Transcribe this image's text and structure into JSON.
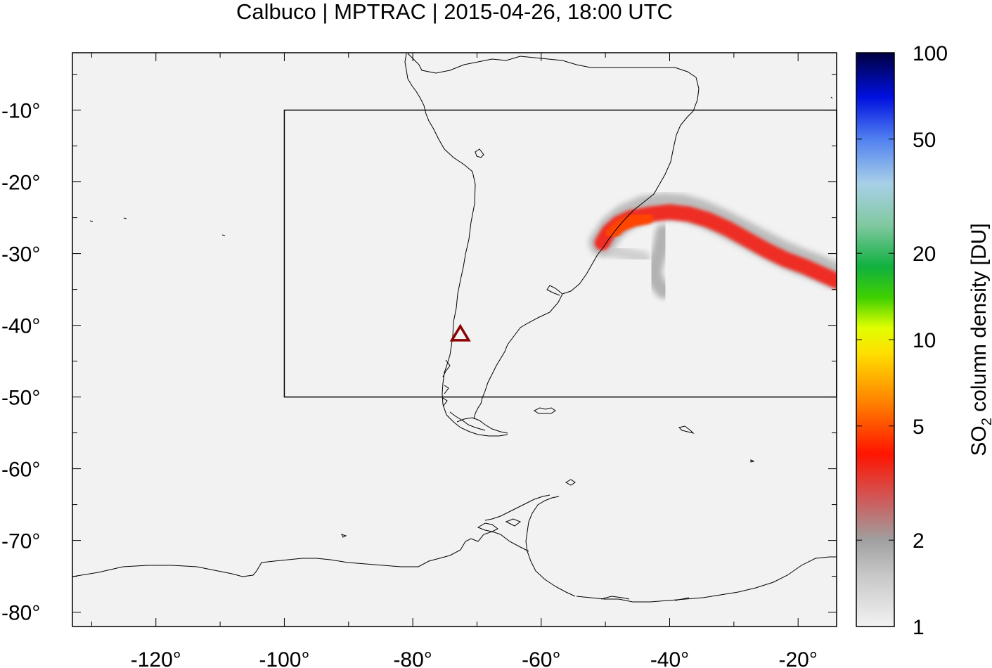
{
  "title": "Calbuco | MPTRAC | 2015-04-26, 18:00 UTC",
  "map": {
    "lon_range": [
      -133,
      -14
    ],
    "lat_range": [
      -82,
      -2
    ],
    "x_ticks": [
      {
        "value": -120,
        "label": "-120°"
      },
      {
        "value": -100,
        "label": "-100°"
      },
      {
        "value": -80,
        "label": "-80°"
      },
      {
        "value": -60,
        "label": "-60°"
      },
      {
        "value": -40,
        "label": "-40°"
      },
      {
        "value": -20,
        "label": "-20°"
      }
    ],
    "y_ticks": [
      {
        "value": -10,
        "label": "-10°"
      },
      {
        "value": -20,
        "label": "-20°"
      },
      {
        "value": -30,
        "label": "-30°"
      },
      {
        "value": -40,
        "label": "-40°"
      },
      {
        "value": -50,
        "label": "-50°"
      },
      {
        "value": -60,
        "label": "-60°"
      },
      {
        "value": -70,
        "label": "-70°"
      },
      {
        "value": -80,
        "label": "-80°"
      }
    ],
    "region_box": {
      "lon": [
        -100,
        -14
      ],
      "lat": [
        -50,
        -10
      ]
    },
    "volcano": {
      "name": "Calbuco",
      "lon": -72.6,
      "lat": -41.3,
      "color": "#8b0000"
    },
    "background_color": "#f2f2f2"
  },
  "colorbar": {
    "label_main": "SO",
    "label_sub": "2",
    "label_rest": " column density [DU]",
    "scale": "log",
    "range": [
      1,
      100
    ],
    "ticks": [
      {
        "value": 1,
        "label": "1"
      },
      {
        "value": 2,
        "label": "2"
      },
      {
        "value": 5,
        "label": "5"
      },
      {
        "value": 10,
        "label": "10"
      },
      {
        "value": 20,
        "label": "20"
      },
      {
        "value": 50,
        "label": "50"
      },
      {
        "value": 100,
        "label": "100"
      }
    ],
    "stops": [
      {
        "value": 1,
        "color": "#f2f2f2"
      },
      {
        "value": 1.5,
        "color": "#c8c8c8"
      },
      {
        "value": 2,
        "color": "#a0a0a0"
      },
      {
        "value": 2.8,
        "color": "#d05858"
      },
      {
        "value": 4,
        "color": "#ff1400"
      },
      {
        "value": 6,
        "color": "#ff8000"
      },
      {
        "value": 9,
        "color": "#ffe000"
      },
      {
        "value": 11,
        "color": "#e0ff00"
      },
      {
        "value": 14,
        "color": "#40d000"
      },
      {
        "value": 18,
        "color": "#10b040"
      },
      {
        "value": 25,
        "color": "#80c8a0"
      },
      {
        "value": 35,
        "color": "#a8d0e8"
      },
      {
        "value": 50,
        "color": "#5080f0"
      },
      {
        "value": 70,
        "color": "#0010e0"
      },
      {
        "value": 100,
        "color": "#000040"
      }
    ]
  },
  "plume": {
    "main_band": {
      "points": [
        [
          -50.5,
          -28.5
        ],
        [
          -49.5,
          -27
        ],
        [
          -48,
          -25.8
        ],
        [
          -46,
          -25
        ],
        [
          -43,
          -24.5
        ],
        [
          -40,
          -24.2
        ],
        [
          -37,
          -24.5
        ],
        [
          -34,
          -25.3
        ],
        [
          -31,
          -26.5
        ],
        [
          -28,
          -28
        ],
        [
          -25,
          -29.5
        ],
        [
          -22,
          -30.8
        ],
        [
          -19,
          -31.8
        ],
        [
          -16.5,
          -32.8
        ],
        [
          -14,
          -33.8
        ]
      ],
      "value": 3.6
    },
    "core": {
      "points": [
        [
          -49,
          -27.2
        ],
        [
          -47.5,
          -26
        ],
        [
          -45.5,
          -25.3
        ],
        [
          -43.5,
          -25
        ]
      ],
      "value": 4.8
    },
    "halo": {
      "points": [
        [
          -50.5,
          -28.5
        ],
        [
          -49,
          -26.5
        ],
        [
          -47,
          -25
        ],
        [
          -44,
          -23.8
        ],
        [
          -41,
          -23.4
        ],
        [
          -38,
          -23.6
        ],
        [
          -35,
          -24.4
        ],
        [
          -32,
          -25.6
        ],
        [
          -29,
          -27
        ],
        [
          -26,
          -28.4
        ],
        [
          -23,
          -29.8
        ],
        [
          -20,
          -31
        ],
        [
          -17,
          -32
        ],
        [
          -14,
          -33.2
        ]
      ],
      "value": 1.8
    },
    "spur": {
      "points": [
        [
          -41,
          -27
        ],
        [
          -41.5,
          -29.5
        ],
        [
          -42,
          -31
        ],
        [
          -42.5,
          -32.5
        ],
        [
          -42,
          -34
        ],
        [
          -41,
          -35.2
        ]
      ],
      "value": 1.9
    },
    "hook": {
      "points": [
        [
          -50,
          -29.5
        ],
        [
          -48,
          -29.8
        ],
        [
          -46,
          -30.2
        ],
        [
          -44,
          -30.6
        ]
      ],
      "value": 1.5
    }
  }
}
